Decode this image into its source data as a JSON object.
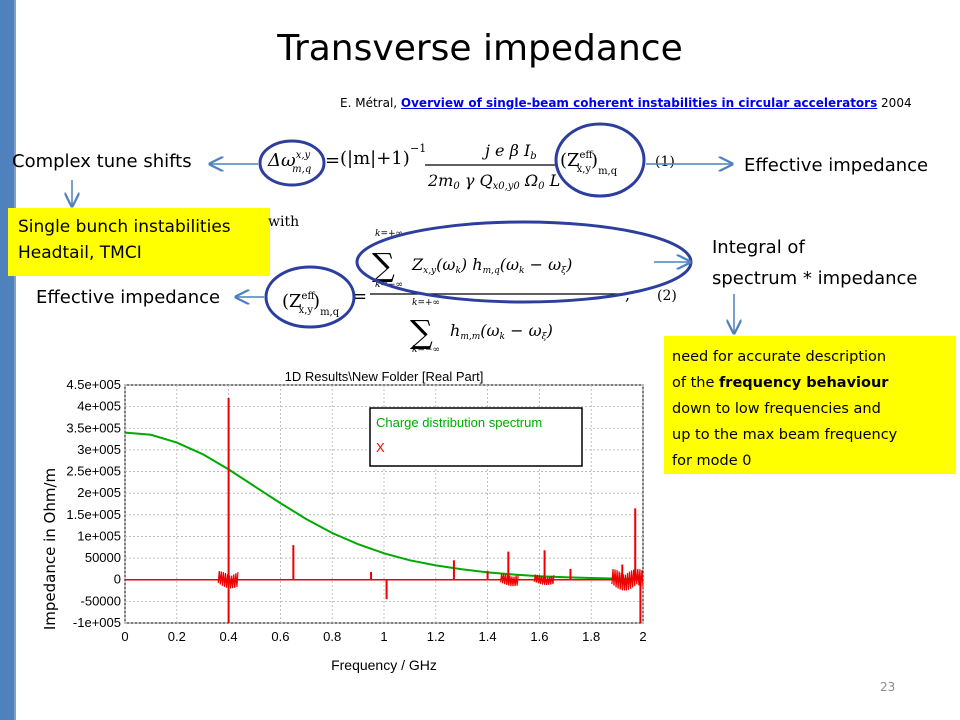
{
  "slide": {
    "title": "Transverse impedance",
    "reference": {
      "author": "E. Métral, ",
      "link_text": "Overview of single-beam coherent instabilities in circular accelerators",
      "year": " 2004"
    },
    "page_number": "23"
  },
  "annotations": {
    "complex_tune_shifts": "Complex tune shifts",
    "effective_impedance_right": "Effective impedance",
    "effective_impedance_left": "Effective impedance",
    "integral_line1": "Integral of",
    "integral_line2": "spectrum * impedance",
    "with_word": "with",
    "eq1_number": "(1)",
    "eq2_number": "(2)"
  },
  "yellow_box_1": {
    "line1": "Single bunch instabilities",
    "line2": "Headtail, TMCI"
  },
  "yellow_box_2": {
    "l1": "need for accurate description",
    "l2a": "of  the ",
    "l2b": "frequency behaviour",
    "l3": "down to low frequencies and",
    "l4": "up to the max beam frequency",
    "l5": "for mode 0"
  },
  "chart_data": {
    "type": "line",
    "title": "1D Results\\New Folder [Real Part]",
    "xlabel": "Frequency / GHz",
    "ylabel": "Impedance in Ohm/m",
    "xlim": [
      0,
      2
    ],
    "ylim": [
      -100000,
      450000
    ],
    "x_ticks": [
      "0",
      "0.2",
      "0.4",
      "0.6",
      "0.8",
      "1",
      "1.2",
      "1.4",
      "1.6",
      "1.8",
      "2"
    ],
    "y_ticks": [
      "4.5e+005",
      "4e+005",
      "3.5e+005",
      "3e+005",
      "2.5e+005",
      "2e+005",
      "1.5e+005",
      "1e+005",
      "50000",
      "0",
      "-50000",
      "-1e+005"
    ],
    "legend_position": "top-right",
    "grid": true,
    "series": [
      {
        "name": "Charge distribution spectrum",
        "color": "#00aa00",
        "x": [
          0,
          0.1,
          0.2,
          0.3,
          0.4,
          0.5,
          0.6,
          0.7,
          0.8,
          0.9,
          1.0,
          1.1,
          1.2,
          1.3,
          1.4,
          1.5,
          1.6,
          1.7,
          1.8,
          1.9,
          2.0
        ],
        "y": [
          340000,
          335000,
          317000,
          290000,
          255000,
          216000,
          177000,
          140000,
          108000,
          82000,
          61000,
          45000,
          33000,
          24000,
          17000,
          12000,
          8000,
          5500,
          4000,
          2500,
          1500
        ]
      },
      {
        "name": "X",
        "color": "#ee0000",
        "spikes": [
          {
            "x": 0.4,
            "y": 420000
          },
          {
            "x": 0.4,
            "y": -100000
          },
          {
            "x": 0.65,
            "y": 80000
          },
          {
            "x": 0.95,
            "y": 18000
          },
          {
            "x": 1.01,
            "y": -45000
          },
          {
            "x": 1.27,
            "y": 45000
          },
          {
            "x": 1.4,
            "y": 20000
          },
          {
            "x": 1.48,
            "y": 65000
          },
          {
            "x": 1.62,
            "y": 68000
          },
          {
            "x": 1.72,
            "y": 25000
          },
          {
            "x": 1.92,
            "y": 35000
          },
          {
            "x": 1.97,
            "y": 165000
          },
          {
            "x": 1.99,
            "y": -100000
          }
        ]
      }
    ]
  },
  "colors": {
    "accent_bar": "#4f81bd",
    "arrow": "#4f81bd",
    "ellipse": "#2c3e9e",
    "highlight": "#ffff00"
  }
}
